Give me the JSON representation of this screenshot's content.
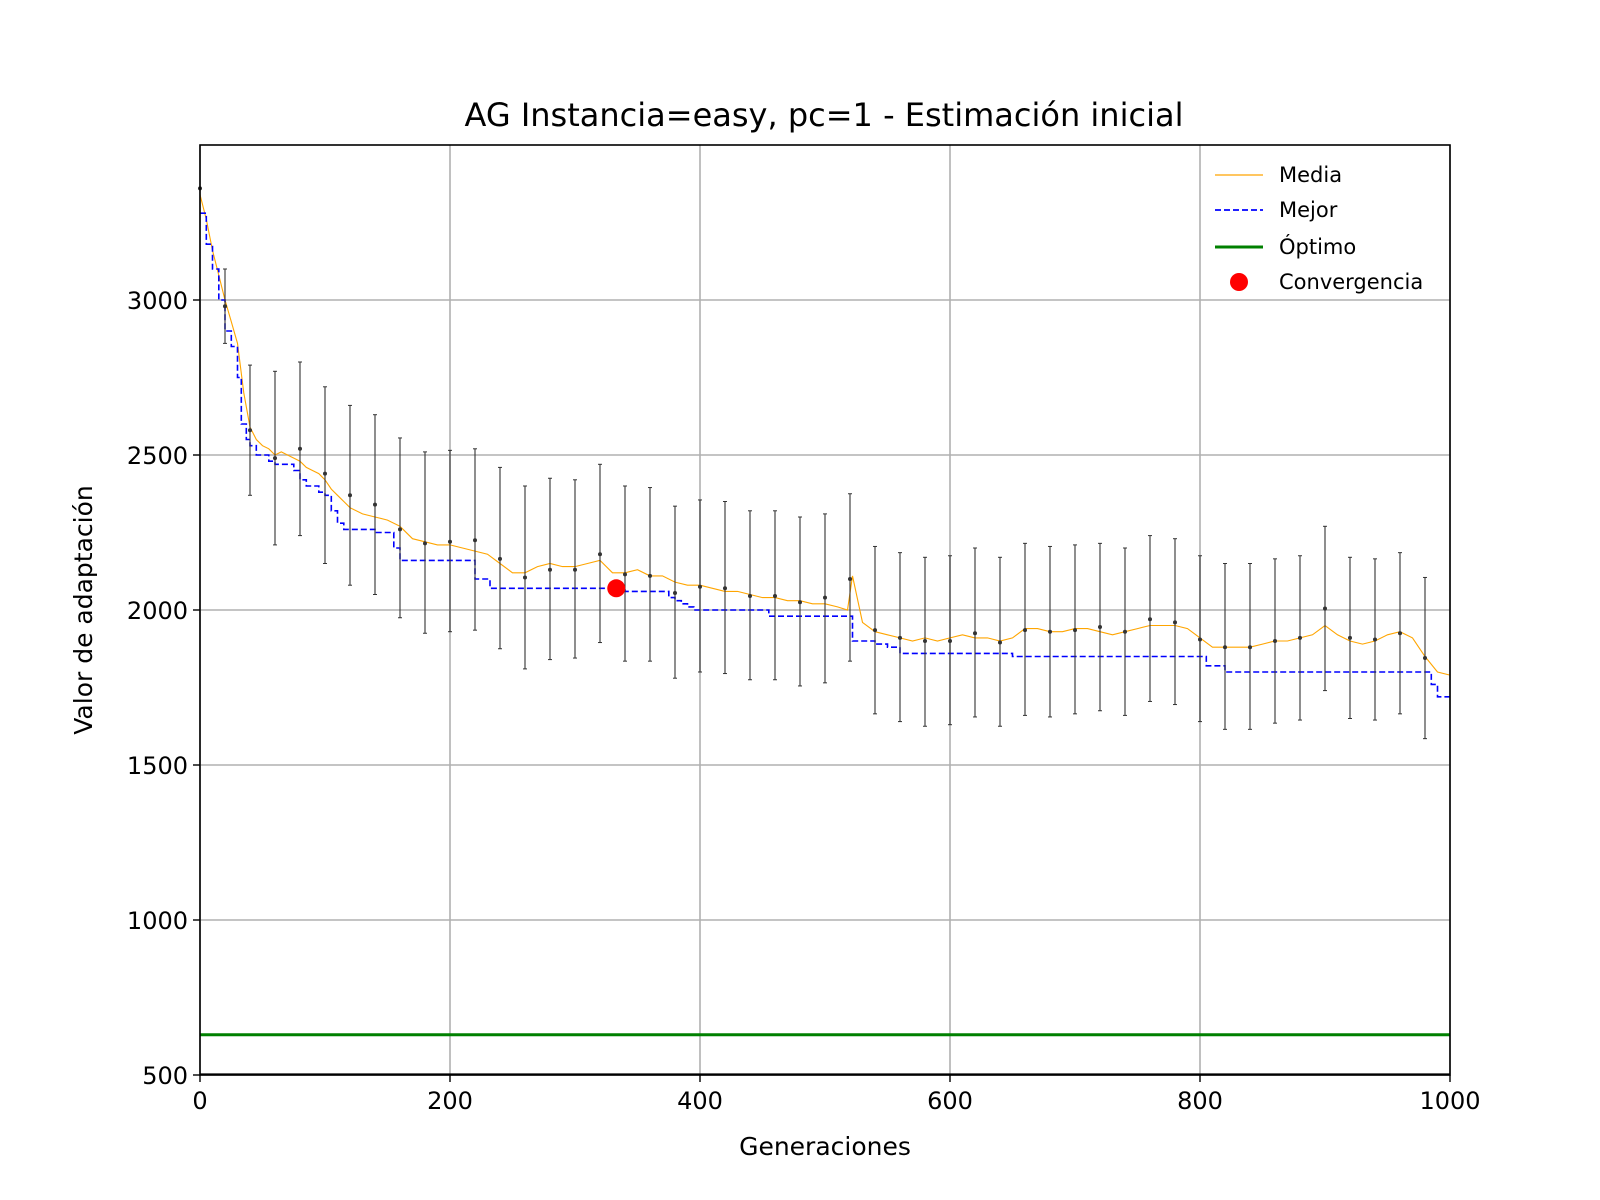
{
  "chart_data": {
    "type": "line",
    "title": "AG Instancia=easy, pc=1 - Estimación inicial",
    "xlabel": "Generaciones",
    "ylabel": "Valor de adaptación",
    "xlim": [
      0,
      1000
    ],
    "ylim": [
      500,
      3500
    ],
    "xticks": [
      0,
      200,
      400,
      600,
      800,
      1000
    ],
    "yticks": [
      500,
      1000,
      1500,
      2000,
      2500,
      3000
    ],
    "grid": true,
    "legend_position": "top-right",
    "colors": {
      "media": "#FFA500",
      "mejor": "#0000FF",
      "optimo": "#008000",
      "convergencia": "#FF0000",
      "errorbar": "#000000"
    },
    "series": [
      {
        "name": "Media",
        "style": "thin-solid",
        "x": [
          0,
          5,
          10,
          15,
          20,
          25,
          30,
          35,
          40,
          45,
          50,
          55,
          60,
          65,
          70,
          75,
          80,
          85,
          90,
          95,
          100,
          105,
          110,
          115,
          120,
          130,
          140,
          150,
          160,
          170,
          180,
          190,
          200,
          210,
          220,
          230,
          240,
          250,
          260,
          270,
          280,
          290,
          300,
          310,
          320,
          330,
          340,
          350,
          360,
          370,
          380,
          390,
          400,
          410,
          420,
          430,
          440,
          450,
          460,
          470,
          480,
          490,
          500,
          510,
          518,
          522,
          530,
          540,
          550,
          560,
          570,
          580,
          590,
          600,
          610,
          620,
          630,
          640,
          650,
          660,
          670,
          680,
          690,
          700,
          710,
          720,
          730,
          740,
          750,
          760,
          770,
          780,
          790,
          800,
          810,
          820,
          830,
          840,
          850,
          860,
          870,
          880,
          890,
          900,
          910,
          920,
          930,
          940,
          950,
          960,
          970,
          980,
          990,
          1000
        ],
        "y": [
          3340,
          3260,
          3160,
          3080,
          3000,
          2930,
          2860,
          2700,
          2590,
          2550,
          2530,
          2520,
          2500,
          2510,
          2500,
          2490,
          2480,
          2460,
          2450,
          2440,
          2420,
          2390,
          2370,
          2350,
          2330,
          2310,
          2300,
          2290,
          2270,
          2230,
          2220,
          2210,
          2210,
          2200,
          2190,
          2180,
          2150,
          2120,
          2120,
          2140,
          2150,
          2140,
          2140,
          2150,
          2160,
          2120,
          2120,
          2130,
          2110,
          2110,
          2090,
          2080,
          2080,
          2070,
          2060,
          2060,
          2050,
          2040,
          2040,
          2030,
          2030,
          2020,
          2020,
          2010,
          2000,
          2110,
          1960,
          1930,
          1920,
          1910,
          1900,
          1910,
          1900,
          1910,
          1920,
          1910,
          1910,
          1900,
          1910,
          1940,
          1940,
          1930,
          1930,
          1940,
          1940,
          1930,
          1920,
          1930,
          1940,
          1950,
          1950,
          1950,
          1940,
          1910,
          1880,
          1880,
          1880,
          1880,
          1890,
          1900,
          1900,
          1910,
          1920,
          1950,
          1920,
          1900,
          1890,
          1900,
          1920,
          1930,
          1910,
          1850,
          1800,
          1790
        ]
      },
      {
        "name": "Mejor",
        "style": "dashed-step",
        "x": [
          0,
          5,
          10,
          15,
          20,
          25,
          30,
          33,
          37,
          40,
          45,
          55,
          60,
          75,
          80,
          85,
          95,
          100,
          105,
          110,
          115,
          140,
          155,
          160,
          165,
          175,
          215,
          220,
          232,
          240,
          340,
          375,
          380,
          385,
          390,
          395,
          400,
          450,
          455,
          460,
          520,
          522,
          525,
          540,
          545,
          550,
          560,
          640,
          650,
          800,
          805,
          810,
          820,
          980,
          985,
          990,
          1000
        ],
        "y": [
          3280,
          3180,
          3100,
          3000,
          2900,
          2850,
          2750,
          2600,
          2550,
          2530,
          2500,
          2480,
          2470,
          2450,
          2420,
          2400,
          2380,
          2370,
          2320,
          2280,
          2260,
          2250,
          2200,
          2160,
          2160,
          2160,
          2160,
          2100,
          2070,
          2070,
          2060,
          2040,
          2030,
          2020,
          2010,
          2000,
          2000,
          2000,
          1980,
          1980,
          1980,
          1900,
          1900,
          1890,
          1890,
          1880,
          1860,
          1860,
          1850,
          1850,
          1820,
          1820,
          1800,
          1800,
          1760,
          1720,
          1720
        ]
      },
      {
        "name": "Óptimo",
        "style": "solid-thick",
        "x": [
          0,
          1000
        ],
        "y": [
          630,
          630
        ]
      },
      {
        "name": "Convergencia",
        "style": "marker",
        "x": [
          333
        ],
        "y": [
          2070
        ]
      }
    ],
    "errorbars": {
      "x": [
        0,
        20,
        40,
        60,
        80,
        100,
        120,
        140,
        160,
        180,
        200,
        220,
        240,
        260,
        280,
        300,
        320,
        340,
        360,
        380,
        400,
        420,
        440,
        460,
        480,
        500,
        520,
        540,
        560,
        580,
        600,
        620,
        640,
        660,
        680,
        700,
        720,
        740,
        760,
        780,
        800,
        820,
        840,
        860,
        880,
        900,
        920,
        940,
        960,
        980
      ],
      "mean": [
        3360,
        2980,
        2580,
        2490,
        2520,
        2440,
        2370,
        2340,
        2260,
        2215,
        2220,
        2225,
        2165,
        2105,
        2130,
        2130,
        2180,
        2115,
        2110,
        2055,
        2075,
        2070,
        2045,
        2045,
        2025,
        2040,
        2100,
        1935,
        1910,
        1900,
        1900,
        1925,
        1895,
        1935,
        1930,
        1935,
        1945,
        1930,
        1970,
        1960,
        1905,
        1880,
        1880,
        1900,
        1910,
        2005,
        1910,
        1905,
        1925,
        1845
      ],
      "low": [
        3360,
        2860,
        2370,
        2210,
        2240,
        2150,
        2080,
        2050,
        1975,
        1925,
        1930,
        1935,
        1875,
        1810,
        1840,
        1845,
        1895,
        1835,
        1835,
        1780,
        1800,
        1795,
        1775,
        1775,
        1755,
        1765,
        1835,
        1665,
        1640,
        1625,
        1630,
        1655,
        1625,
        1660,
        1655,
        1665,
        1675,
        1660,
        1705,
        1695,
        1640,
        1615,
        1615,
        1635,
        1645,
        1740,
        1650,
        1645,
        1665,
        1585
      ],
      "high": [
        3360,
        3100,
        2790,
        2770,
        2800,
        2720,
        2660,
        2630,
        2555,
        2510,
        2515,
        2520,
        2460,
        2400,
        2425,
        2420,
        2470,
        2400,
        2395,
        2335,
        2355,
        2350,
        2320,
        2320,
        2300,
        2310,
        2375,
        2205,
        2185,
        2170,
        2175,
        2200,
        2170,
        2215,
        2205,
        2210,
        2215,
        2200,
        2240,
        2230,
        2175,
        2150,
        2150,
        2165,
        2175,
        2270,
        2170,
        2165,
        2185,
        2105
      ]
    }
  }
}
